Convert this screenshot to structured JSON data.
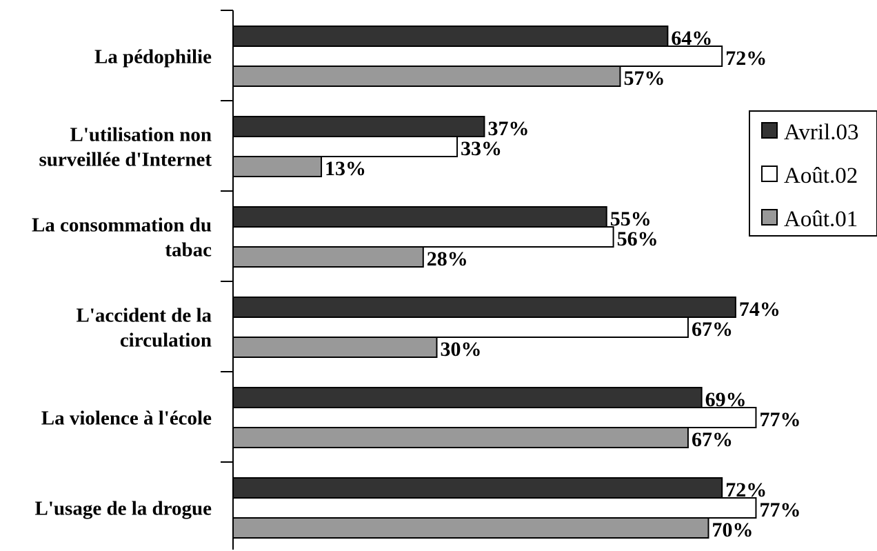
{
  "chart_data": {
    "type": "bar",
    "orientation": "horizontal",
    "categories": [
      [
        "La pédophilie"
      ],
      [
        "L'utilisation non",
        "surveillée d'Internet"
      ],
      [
        "La consommation du",
        "tabac"
      ],
      [
        "L'accident de la",
        "circulation"
      ],
      [
        "La violence à l'école"
      ],
      [
        "L'usage de la drogue"
      ]
    ],
    "series": [
      {
        "name": "Avril.03",
        "color": "#333333",
        "values": [
          64,
          37,
          55,
          74,
          69,
          72
        ],
        "labels": [
          "64%",
          "37%",
          "55%",
          "74%",
          "69%",
          "72%"
        ]
      },
      {
        "name": "Août.02",
        "color": "#ffffff",
        "values": [
          72,
          33,
          56,
          67,
          77,
          77
        ],
        "labels": [
          "72%",
          "33%",
          "56%",
          "67%",
          "77%",
          "77%"
        ]
      },
      {
        "name": "Août.01",
        "color": "#999999",
        "values": [
          57,
          13,
          28,
          30,
          67,
          70
        ],
        "labels": [
          "57%",
          "13%",
          "28%",
          "30%",
          "67%",
          "70%"
        ]
      }
    ],
    "xlim": [
      0,
      100
    ],
    "unit": "%",
    "legend_position": "right",
    "grid": false
  }
}
